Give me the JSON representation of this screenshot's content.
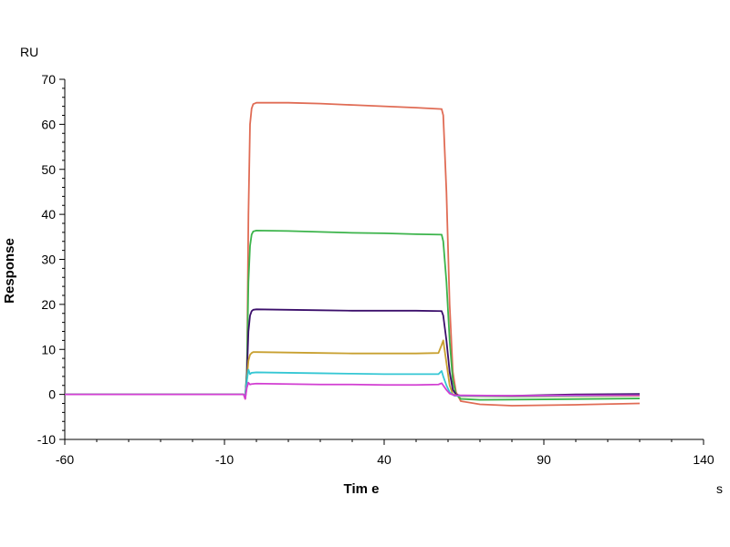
{
  "chart_data": {
    "type": "line",
    "xlabel": "Tim e",
    "ylabel": "Response",
    "x_unit": "s",
    "y_unit": "RU",
    "xlim": [
      -60,
      140
    ],
    "ylim": [
      -10,
      70
    ],
    "xticks": [
      -60,
      -10,
      40,
      90,
      140
    ],
    "yticks": [
      -10,
      0,
      10,
      20,
      30,
      40,
      50,
      60,
      70
    ],
    "grid": false,
    "series": [
      {
        "color": "#e06c55",
        "points": [
          [
            -60,
            0
          ],
          [
            -10,
            0
          ],
          [
            -4,
            0
          ],
          [
            -3.5,
            -1
          ],
          [
            -3,
            2
          ],
          [
            -2.5,
            40
          ],
          [
            -2,
            60
          ],
          [
            -1.5,
            63.5
          ],
          [
            -1,
            64.5
          ],
          [
            0,
            64.8
          ],
          [
            10,
            64.8
          ],
          [
            20,
            64.6
          ],
          [
            30,
            64.3
          ],
          [
            40,
            64.0
          ],
          [
            50,
            63.7
          ],
          [
            58,
            63.4
          ],
          [
            58.5,
            62
          ],
          [
            59.5,
            45
          ],
          [
            60.5,
            20
          ],
          [
            61.5,
            5
          ],
          [
            62.5,
            0.5
          ],
          [
            64,
            -1.5
          ],
          [
            70,
            -2.2
          ],
          [
            80,
            -2.5
          ],
          [
            100,
            -2.3
          ],
          [
            120,
            -2
          ]
        ]
      },
      {
        "color": "#3cb44b",
        "points": [
          [
            -60,
            0
          ],
          [
            -10,
            0
          ],
          [
            -4,
            0
          ],
          [
            -3.5,
            -0.5
          ],
          [
            -3,
            5
          ],
          [
            -2.5,
            25
          ],
          [
            -2,
            33
          ],
          [
            -1.5,
            35.5
          ],
          [
            -1,
            36.2
          ],
          [
            0,
            36.4
          ],
          [
            10,
            36.3
          ],
          [
            20,
            36.1
          ],
          [
            30,
            35.9
          ],
          [
            40,
            35.8
          ],
          [
            50,
            35.6
          ],
          [
            58,
            35.5
          ],
          [
            58.5,
            34
          ],
          [
            59.5,
            25
          ],
          [
            60.5,
            12
          ],
          [
            61.5,
            3
          ],
          [
            62.5,
            0
          ],
          [
            64,
            -1
          ],
          [
            70,
            -1.2
          ],
          [
            90,
            -1.1
          ],
          [
            120,
            -0.9
          ]
        ]
      },
      {
        "color": "#3b0f6b",
        "points": [
          [
            -60,
            0
          ],
          [
            -10,
            0
          ],
          [
            -4,
            0
          ],
          [
            -3.5,
            -0.5
          ],
          [
            -3,
            4
          ],
          [
            -2.5,
            14
          ],
          [
            -2,
            17.5
          ],
          [
            -1.5,
            18.5
          ],
          [
            -1,
            18.8
          ],
          [
            0,
            18.9
          ],
          [
            10,
            18.8
          ],
          [
            20,
            18.7
          ],
          [
            30,
            18.6
          ],
          [
            40,
            18.6
          ],
          [
            50,
            18.6
          ],
          [
            58,
            18.5
          ],
          [
            58.5,
            17.5
          ],
          [
            59.5,
            12
          ],
          [
            60.5,
            5
          ],
          [
            61.5,
            1
          ],
          [
            62.5,
            0
          ],
          [
            64,
            -0.3
          ],
          [
            80,
            -0.3
          ],
          [
            100,
            0
          ],
          [
            120,
            0.1
          ]
        ]
      },
      {
        "color": "#c8a030",
        "points": [
          [
            -60,
            0
          ],
          [
            -10,
            0
          ],
          [
            -4,
            0
          ],
          [
            -3.5,
            -0.5
          ],
          [
            -3,
            3
          ],
          [
            -2.5,
            7.5
          ],
          [
            -2,
            8.8
          ],
          [
            -1.5,
            9.2
          ],
          [
            -1,
            9.4
          ],
          [
            0,
            9.4
          ],
          [
            10,
            9.3
          ],
          [
            20,
            9.2
          ],
          [
            30,
            9.1
          ],
          [
            40,
            9.1
          ],
          [
            50,
            9.1
          ],
          [
            57,
            9.2
          ],
          [
            58,
            11
          ],
          [
            58.5,
            12
          ],
          [
            59.5,
            7
          ],
          [
            60.5,
            2
          ],
          [
            61.5,
            0
          ],
          [
            64,
            -0.4
          ],
          [
            80,
            -0.5
          ],
          [
            100,
            -0.4
          ],
          [
            120,
            -0.3
          ]
        ]
      },
      {
        "color": "#35c7d4",
        "points": [
          [
            -60,
            0
          ],
          [
            -10,
            0
          ],
          [
            -4,
            0
          ],
          [
            -3.5,
            -0.5
          ],
          [
            -3,
            3
          ],
          [
            -2.5,
            5.5
          ],
          [
            -2,
            4.5
          ],
          [
            -1.5,
            4.8
          ],
          [
            0,
            4.9
          ],
          [
            10,
            4.8
          ],
          [
            20,
            4.7
          ],
          [
            30,
            4.6
          ],
          [
            40,
            4.5
          ],
          [
            50,
            4.5
          ],
          [
            57,
            4.5
          ],
          [
            58,
            5.2
          ],
          [
            58.5,
            4
          ],
          [
            59.5,
            2
          ],
          [
            60.5,
            0.5
          ],
          [
            62,
            -0.3
          ],
          [
            80,
            -0.4
          ],
          [
            100,
            -0.3
          ],
          [
            120,
            -0.2
          ]
        ]
      },
      {
        "color": "#d23fd2",
        "points": [
          [
            -60,
            0
          ],
          [
            -10,
            0
          ],
          [
            -4,
            0
          ],
          [
            -3.5,
            -1
          ],
          [
            -3,
            1.5
          ],
          [
            -2.5,
            2.6
          ],
          [
            -2,
            2.2
          ],
          [
            -1.5,
            2.3
          ],
          [
            0,
            2.4
          ],
          [
            10,
            2.3
          ],
          [
            20,
            2.2
          ],
          [
            30,
            2.2
          ],
          [
            40,
            2.1
          ],
          [
            50,
            2.1
          ],
          [
            57,
            2.2
          ],
          [
            58,
            2.5
          ],
          [
            58.5,
            2
          ],
          [
            59.5,
            1
          ],
          [
            60.5,
            0.2
          ],
          [
            62,
            -0.2
          ],
          [
            80,
            -0.3
          ],
          [
            100,
            -0.2
          ],
          [
            120,
            -0.2
          ]
        ]
      }
    ]
  }
}
